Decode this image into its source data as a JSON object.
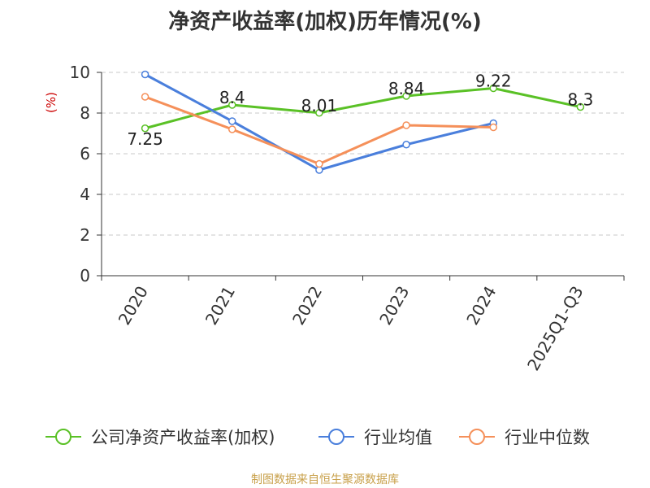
{
  "chart_data": {
    "type": "line",
    "title": "净资产收益率(加权)历年情况(%)",
    "ylabel": "(%)",
    "xlabel": "",
    "ylim": [
      0,
      10
    ],
    "yticks": [
      0,
      2,
      4,
      6,
      8,
      10
    ],
    "grid": true,
    "legend_position": "bottom",
    "categories": [
      "2020",
      "2021",
      "2022",
      "2023",
      "2024",
      "2025Q1-Q3"
    ],
    "series": [
      {
        "name": "公司净资产收益率(加权)",
        "color": "#5ac126",
        "values": [
          7.25,
          8.4,
          8.01,
          8.84,
          9.22,
          8.3
        ],
        "labels": [
          "7.25",
          "8.4",
          "8.01",
          "8.84",
          "9.22",
          "8.3"
        ]
      },
      {
        "name": "行业均值",
        "color": "#4a7fdc",
        "values": [
          9.9,
          7.6,
          5.2,
          6.45,
          7.5,
          null
        ]
      },
      {
        "name": "行业中位数",
        "color": "#f5905a",
        "values": [
          8.8,
          7.2,
          5.5,
          7.4,
          7.3,
          null
        ]
      }
    ]
  },
  "source": "制图数据来自恒生聚源数据库"
}
